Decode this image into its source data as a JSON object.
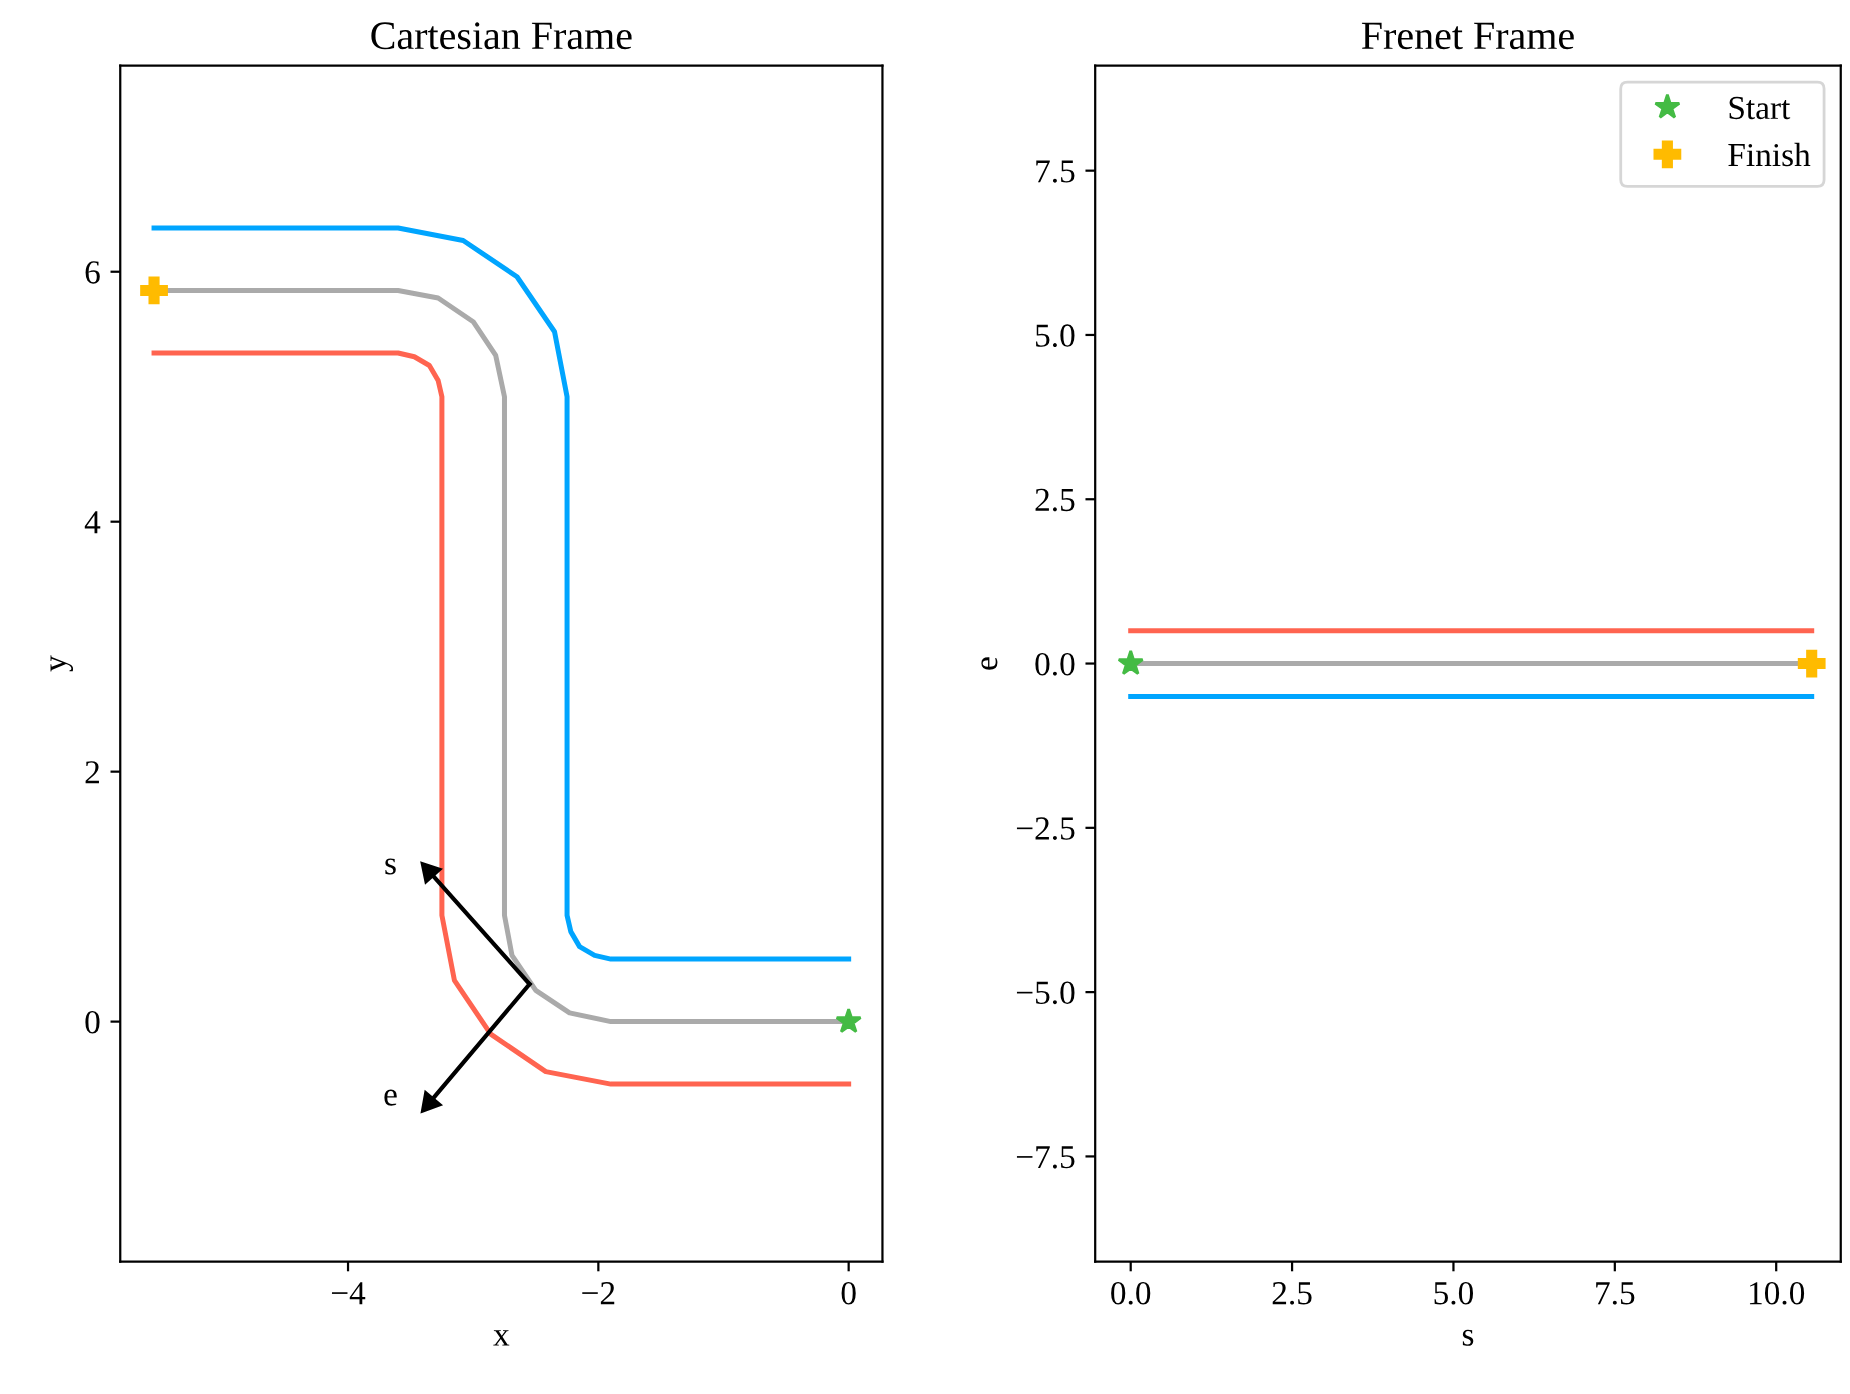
{
  "chart_data": [
    {
      "type": "line",
      "title": "Cartesian Frame",
      "xlabel": "x",
      "ylabel": "y",
      "xlim": [
        -5.82,
        0.27
      ],
      "ylim": [
        -1.92,
        7.65
      ],
      "xticks": [
        {
          "value": -4,
          "label": "−4"
        },
        {
          "value": -2,
          "label": "−2"
        },
        0
      ],
      "yticks": [
        0,
        2,
        4,
        6
      ],
      "grid": false,
      "legend": false,
      "series": [
        {
          "color": "#00a5ff",
          "x": [
            0,
            -1.9,
            -2.03,
            -2.15,
            -2.22,
            -2.25,
            -2.25,
            -2.35,
            -2.65,
            -3.08,
            -3.6,
            -5.55
          ],
          "values": [
            0.5,
            0.5,
            0.53,
            0.6,
            0.72,
            0.85,
            5,
            5.52,
            5.96,
            6.25,
            6.35,
            6.35
          ]
        },
        {
          "color": "#aaaaaa",
          "x": [
            0,
            -1.9,
            -2.23,
            -2.5,
            -2.69,
            -2.75,
            -2.75,
            -2.82,
            -3.0,
            -3.28,
            -3.6,
            -5.55
          ],
          "values": [
            0,
            0,
            0.07,
            0.25,
            0.53,
            0.85,
            5,
            5.33,
            5.6,
            5.79,
            5.85,
            5.85
          ]
        },
        {
          "color": "#ff6450",
          "x": [
            0,
            -1.9,
            -2.42,
            -2.86,
            -3.15,
            -3.25,
            -3.25,
            -3.28,
            -3.35,
            -3.47,
            -3.6,
            -5.55
          ],
          "values": [
            -0.5,
            -0.5,
            -0.4,
            -0.1,
            0.33,
            0.85,
            5,
            5.13,
            5.25,
            5.32,
            5.35,
            5.35
          ]
        },
        {
          "marker": "triangle",
          "color": "#000000",
          "x": [
            -2.55,
            -3.35
          ],
          "values": [
            0.3,
            1.2
          ]
        },
        {
          "marker": "triangle",
          "color": "#000000",
          "x": [
            -2.55,
            -3.35
          ],
          "values": [
            0.3,
            -0.65
          ]
        },
        {
          "type": "scatter",
          "marker": "star",
          "color": "#44bb44",
          "x": [
            0
          ],
          "values": [
            0
          ]
        },
        {
          "type": "scatter",
          "marker": "cross",
          "color": "#ffbb00",
          "x": [
            -5.55
          ],
          "values": [
            5.85
          ]
        }
      ],
      "annotations": [
        "s",
        "e"
      ]
    },
    {
      "type": "line",
      "title": "Frenet Frame",
      "xlabel": "s",
      "ylabel": "e",
      "xlim": [
        -0.55,
        11.0
      ],
      "ylim": [
        -9.1,
        9.1
      ],
      "xticks": [
        {
          "value": 0,
          "label": "0.0"
        },
        2.5,
        {
          "value": 5,
          "label": "5.0"
        },
        7.5,
        {
          "value": 10,
          "label": "10.0"
        }
      ],
      "yticks": [
        {
          "value": -7.5,
          "label": "−7.5"
        },
        {
          "value": -5,
          "label": "−5.0"
        },
        {
          "value": -2.5,
          "label": "−2.5"
        },
        {
          "value": 0,
          "label": "0.0"
        },
        2.5,
        {
          "value": 5,
          "label": "5.0"
        },
        7.5
      ],
      "grid": false,
      "legend": "top right",
      "series": [
        {
          "color": "#ff6450",
          "x": [
            0,
            10.55
          ],
          "values": [
            0.5,
            0.5
          ]
        },
        {
          "color": "#aaaaaa",
          "x": [
            0,
            10.55
          ],
          "values": [
            0,
            0
          ]
        },
        {
          "color": "#00a5ff",
          "x": [
            0,
            10.55
          ],
          "values": [
            -0.5,
            -0.5
          ]
        },
        {
          "type": "scatter",
          "name": "Start",
          "marker": "star",
          "color": "#44bb44",
          "x": [
            0
          ],
          "values": [
            0
          ]
        },
        {
          "type": "scatter",
          "name": "Finish",
          "marker": "cross",
          "color": "#ffbb00",
          "x": [
            10.55
          ],
          "values": [
            0
          ]
        }
      ]
    }
  ]
}
